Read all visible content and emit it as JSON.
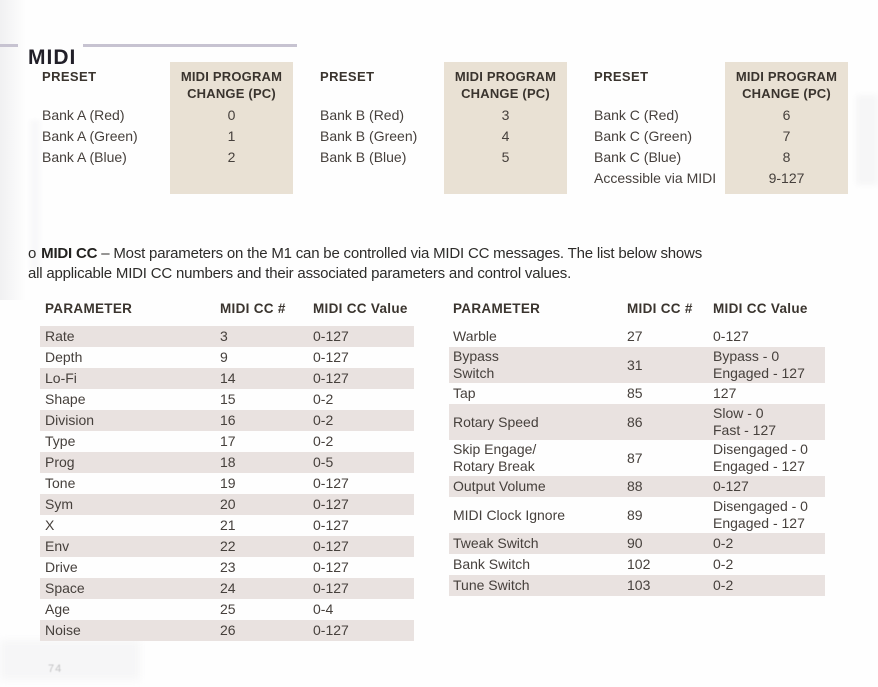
{
  "colors": {
    "accent-beige": "#e9e1d4",
    "stripe": "#e9e2e0",
    "rule": "#c7c3d1",
    "ink-dark": "#211f28",
    "ink": "#46403c",
    "ink-bold": "#3a342e"
  },
  "page": {
    "title": "MIDI",
    "page_number_faint": "74"
  },
  "preset_tables": [
    {
      "preset_header": "PRESET",
      "pc_header_lines": [
        "MIDI PROGRAM",
        "CHANGE (PC)"
      ],
      "rows": [
        {
          "preset": "Bank A (Red)",
          "pc": "0"
        },
        {
          "preset": "Bank A (Green)",
          "pc": "1"
        },
        {
          "preset": "Bank A (Blue)",
          "pc": "2"
        }
      ]
    },
    {
      "preset_header": "PRESET",
      "pc_header_lines": [
        "MIDI PROGRAM",
        "CHANGE (PC)"
      ],
      "rows": [
        {
          "preset": "Bank B (Red)",
          "pc": "3"
        },
        {
          "preset": "Bank B (Green)",
          "pc": "4"
        },
        {
          "preset": "Bank B (Blue)",
          "pc": "5"
        }
      ]
    },
    {
      "preset_header": "PRESET",
      "pc_header_lines": [
        "MIDI PROGRAM",
        "CHANGE (PC)"
      ],
      "rows": [
        {
          "preset": "Bank C (Red)",
          "pc": "6"
        },
        {
          "preset": "Bank C (Green)",
          "pc": "7"
        },
        {
          "preset": "Bank C (Blue)",
          "pc": "8"
        },
        {
          "preset": "Accessible via MIDI",
          "pc": "9-127"
        }
      ]
    }
  ],
  "midi_cc_note": {
    "bullet": "o",
    "label": "MIDI CC",
    "text_after_label": "– Most parameters on the M1 can be controlled via MIDI CC messages. The list below shows",
    "text_line2": "all applicable MIDI CC numbers and their associated parameters and control values."
  },
  "cc_tables": [
    {
      "headers": [
        "PARAMETER",
        "MIDI CC #",
        "MIDI CC Value"
      ],
      "rows": [
        {
          "parameter": "Rate",
          "cc": "3",
          "value": "0-127",
          "shaded": true
        },
        {
          "parameter": "Depth",
          "cc": "9",
          "value": "0-127",
          "shaded": false
        },
        {
          "parameter": "Lo-Fi",
          "cc": "14",
          "value": "0-127",
          "shaded": true
        },
        {
          "parameter": "Shape",
          "cc": "15",
          "value": "0-2",
          "shaded": false
        },
        {
          "parameter": "Division",
          "cc": "16",
          "value": "0-2",
          "shaded": true
        },
        {
          "parameter": "Type",
          "cc": "17",
          "value": "0-2",
          "shaded": false
        },
        {
          "parameter": "Prog",
          "cc": "18",
          "value": "0-5",
          "shaded": true
        },
        {
          "parameter": "Tone",
          "cc": "19",
          "value": "0-127",
          "shaded": false
        },
        {
          "parameter": "Sym",
          "cc": "20",
          "value": "0-127",
          "shaded": true
        },
        {
          "parameter": "X",
          "cc": "21",
          "value": "0-127",
          "shaded": false
        },
        {
          "parameter": "Env",
          "cc": "22",
          "value": "0-127",
          "shaded": true
        },
        {
          "parameter": "Drive",
          "cc": "23",
          "value": "0-127",
          "shaded": false
        },
        {
          "parameter": "Space",
          "cc": "24",
          "value": "0-127",
          "shaded": true
        },
        {
          "parameter": "Age",
          "cc": "25",
          "value": "0-4",
          "shaded": false
        },
        {
          "parameter": "Noise",
          "cc": "26",
          "value": "0-127",
          "shaded": true
        }
      ]
    },
    {
      "headers": [
        "PARAMETER",
        "MIDI CC #",
        "MIDI CC Value"
      ],
      "rows": [
        {
          "parameter": "Warble",
          "cc": "27",
          "value": "0-127",
          "shaded": false
        },
        {
          "parameter": [
            "Bypass",
            "Switch"
          ],
          "cc": "31",
          "value": [
            "Bypass - 0",
            "Engaged - 127"
          ],
          "shaded": true
        },
        {
          "parameter": "Tap",
          "cc": "85",
          "value": "127",
          "shaded": false
        },
        {
          "parameter": "Rotary Speed",
          "cc": "86",
          "value": [
            "Slow - 0",
            "Fast - 127"
          ],
          "shaded": true
        },
        {
          "parameter": [
            "Skip Engage/",
            "Rotary Break"
          ],
          "cc": "87",
          "value": [
            "Disengaged - 0",
            "Engaged - 127"
          ],
          "shaded": false
        },
        {
          "parameter": "Output Volume",
          "cc": "88",
          "value": "0-127",
          "shaded": true
        },
        {
          "parameter": "MIDI Clock Ignore",
          "cc": "89",
          "value": [
            "Disengaged - 0",
            "Engaged - 127"
          ],
          "shaded": false
        },
        {
          "parameter": "Tweak Switch",
          "cc": "90",
          "value": "0-2",
          "shaded": true
        },
        {
          "parameter": "Bank Switch",
          "cc": "102",
          "value": "0-2",
          "shaded": false
        },
        {
          "parameter": "Tune Switch",
          "cc": "103",
          "value": "0-2",
          "shaded": true
        }
      ]
    }
  ]
}
